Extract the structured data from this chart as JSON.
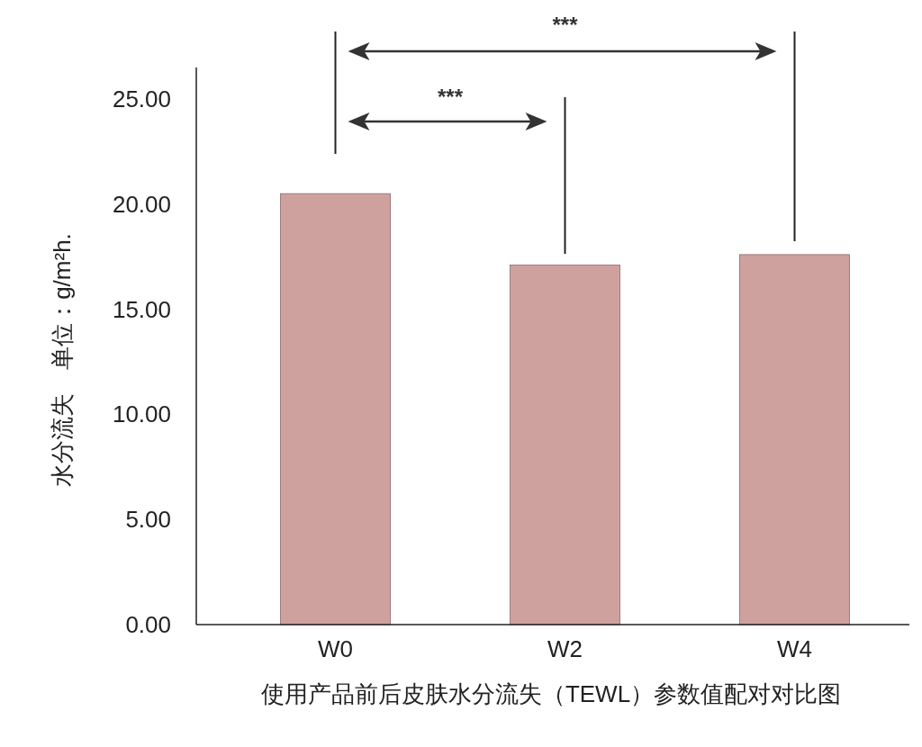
{
  "chart_data": {
    "type": "bar",
    "xlabel": "使用产品前后皮肤水分流失（TEWL）参数值配对对比图",
    "ylabel": "水分流失　单位：g/m²h.",
    "categories": [
      "W0",
      "W2",
      "W4"
    ],
    "values": [
      20.5,
      17.1,
      17.6
    ],
    "color": "#cea19f",
    "ylim": [
      0,
      26.5
    ],
    "yticks": [
      {
        "value": 0,
        "label": "0.00"
      },
      {
        "value": 5,
        "label": "5.00"
      },
      {
        "value": 10,
        "label": "10.00"
      },
      {
        "value": 15,
        "label": "15.00"
      },
      {
        "value": 20,
        "label": "20.00"
      },
      {
        "value": 25,
        "label": "25.00"
      }
    ],
    "annotations": [
      "***",
      "***"
    ]
  }
}
